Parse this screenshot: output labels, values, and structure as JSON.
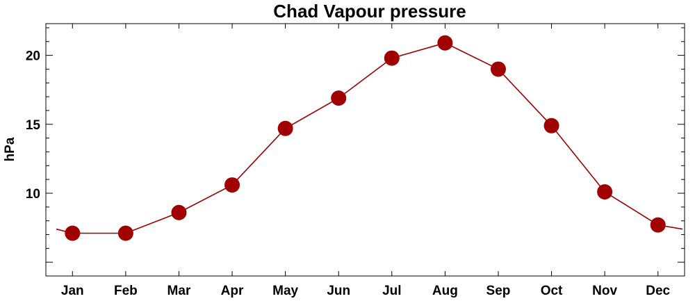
{
  "chart_data": {
    "type": "line",
    "title": "Chad Vapour pressure",
    "xlabel": "",
    "ylabel": "hPa",
    "categories": [
      "Jan",
      "Feb",
      "Mar",
      "Apr",
      "May",
      "Jun",
      "Jul",
      "Aug",
      "Sep",
      "Oct",
      "Nov",
      "Dec"
    ],
    "series": [
      {
        "values": [
          7.1,
          7.1,
          8.6,
          10.6,
          14.7,
          16.9,
          19.8,
          20.9,
          19.0,
          14.9,
          10.1,
          7.7
        ],
        "color": "#a00000",
        "marker": "circle"
      }
    ],
    "wrap_edges": {
      "left_value": 7.4,
      "right_value": 7.4
    },
    "ylim": [
      4.0,
      22.3
    ],
    "yticks": [
      10,
      15,
      20
    ],
    "grid": false,
    "legend": "none"
  }
}
